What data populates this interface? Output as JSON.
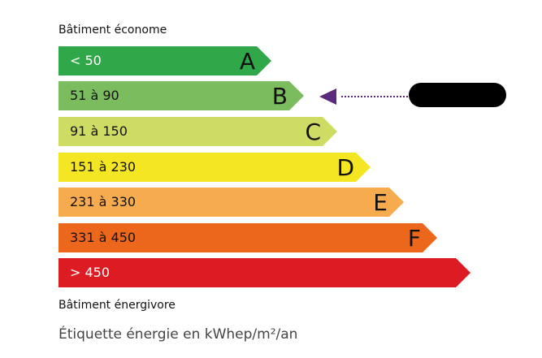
{
  "top_label": "Bâtiment économe",
  "bottom_label": "Bâtiment énergivore",
  "caption": "Étiquette énergie en kWhep/m²/an",
  "classes": [
    {
      "range": "< 50",
      "letter": "A",
      "color": "#30a84a",
      "text_color": "#ffffff"
    },
    {
      "range": "51 à 90",
      "letter": "B",
      "color": "#7bbd5e",
      "text_color": "#111111"
    },
    {
      "range": "91 à 150",
      "letter": "C",
      "color": "#cfdc64",
      "text_color": "#111111"
    },
    {
      "range": "151 à 230",
      "letter": "D",
      "color": "#f4e622",
      "text_color": "#111111"
    },
    {
      "range": "231 à 330",
      "letter": "E",
      "color": "#f5ab4e",
      "text_color": "#111111"
    },
    {
      "range": "331 à 450",
      "letter": "F",
      "color": "#ec671b",
      "text_color": "#111111"
    },
    {
      "range": "> 450",
      "letter": "",
      "color": "#dc1c22",
      "text_color": "#ffffff"
    }
  ],
  "current_class": "B",
  "marker_color": "#5b2a7c"
}
